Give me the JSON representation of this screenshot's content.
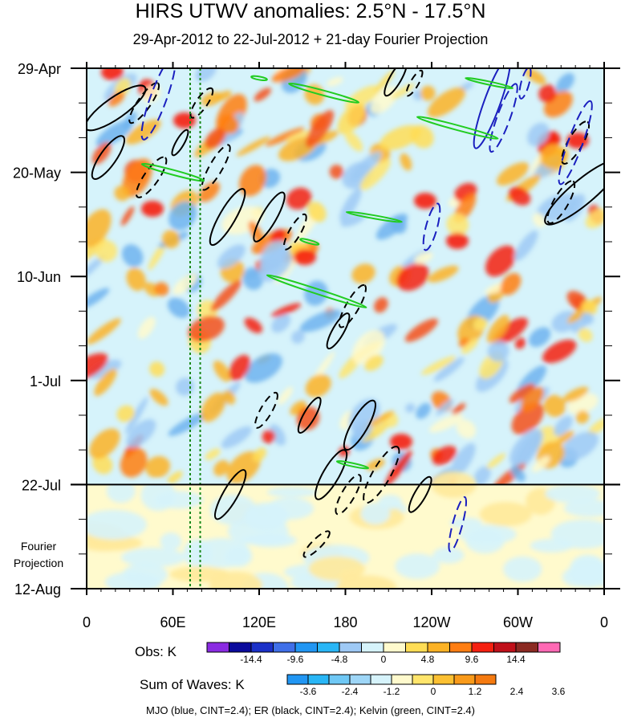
{
  "colors": {
    "mjo": "#1a1fbf",
    "er": "#000000",
    "kelvin": "#22cc22",
    "dashed_line": "#1a8a1a"
  },
  "chart_data": {
    "type": "heatmap",
    "title": "HIRS UTWV anomalies: 2.5°N - 17.5°N",
    "subtitle": "29-Apr-2012 to 22-Jul-2012 + 21-day Fourier Projection",
    "xlabel": "",
    "ylabel": "",
    "x_ticks": [
      "0",
      "60E",
      "120E",
      "180",
      "120W",
      "60W",
      "0"
    ],
    "x_range_deg": [
      0,
      360
    ],
    "y_ticks": [
      "29-Apr",
      "20-May",
      "10-Jun",
      "1-Jul",
      "22-Jul",
      "12-Aug"
    ],
    "y_range_days": [
      0,
      105
    ],
    "projection_start_day": 84,
    "projection_label": [
      "Fourier",
      "Projection"
    ],
    "dotted_longitudes_deg": [
      72,
      79
    ],
    "obs_legend": {
      "label": "Obs: K",
      "tick_labels": [
        "-14.4",
        "-9.6",
        "-4.8",
        "0",
        "4.8",
        "9.6",
        "14.4"
      ],
      "colors": [
        "#8a2be2",
        "#0a0a9c",
        "#1b31c8",
        "#3f6fe8",
        "#2196f3",
        "#29b6f6",
        "#9ec9f5",
        "#d6f3fb",
        "#fffacd",
        "#ffdd55",
        "#fcb225",
        "#ff7e12",
        "#f52010",
        "#c0101a",
        "#8b2a22",
        "#ff69b4"
      ]
    },
    "sow_legend": {
      "label": "Sum of Waves: K",
      "tick_labels": [
        "-3.6",
        "-2.4",
        "-1.2",
        "0",
        "1.2",
        "2.4",
        "3.6"
      ],
      "colors": [
        "#2196f3",
        "#29b6f6",
        "#6fc8f5",
        "#9ed6f7",
        "#d6f3fb",
        "#fffacd",
        "#ffe56b",
        "#fcc032",
        "#f99a1a",
        "#f57a10"
      ]
    },
    "footer": "MJO (blue, CINT=2.4); ER (black, CINT=2.4); Kelvin (green, CINT=2.4)"
  }
}
